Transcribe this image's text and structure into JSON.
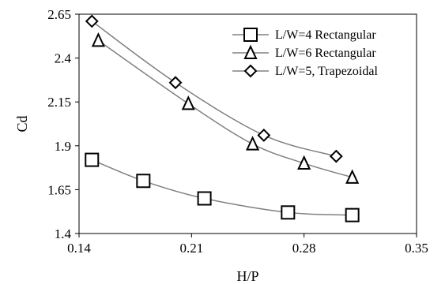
{
  "chart_data": {
    "type": "scatter",
    "title": "",
    "xlabel": "H/P",
    "ylabel": "Cd",
    "xlim": [
      0.14,
      0.35
    ],
    "ylim": [
      1.4,
      2.65
    ],
    "xticks": [
      "0.14",
      "0.21",
      "0.28",
      "0.35"
    ],
    "yticks": [
      "1.4",
      "1.65",
      "1.9",
      "2.15",
      "2.4",
      "2.65"
    ],
    "grid": false,
    "legend_position": "top-right",
    "series": [
      {
        "name": "L/W=4 Rectangular",
        "marker": "square",
        "x": [
          0.148,
          0.18,
          0.218,
          0.27,
          0.31
        ],
        "y": [
          1.82,
          1.7,
          1.6,
          1.52,
          1.505
        ],
        "color": "#808080"
      },
      {
        "name": "L/W=6 Rectangular",
        "marker": "triangle",
        "x": [
          0.152,
          0.208,
          0.248,
          0.28,
          0.31
        ],
        "y": [
          2.5,
          2.14,
          1.91,
          1.8,
          1.72
        ],
        "color": "#808080"
      },
      {
        "name": "L/W=5, Trapezoidal",
        "marker": "diamond",
        "x": [
          0.148,
          0.2,
          0.255,
          0.3
        ],
        "y": [
          2.61,
          2.26,
          1.96,
          1.84
        ],
        "color": "#808080"
      }
    ]
  }
}
